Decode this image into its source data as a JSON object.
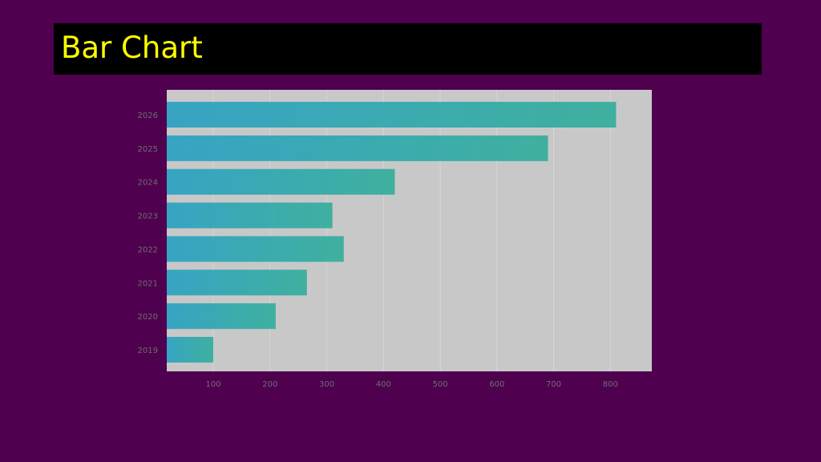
{
  "slide": {
    "title": "Bar Chart"
  },
  "colors": {
    "background": "#4f004f",
    "title_bar": "#000000",
    "title_text": "#ffff00",
    "plot_background": "#c8c8c8",
    "gridline": "#d6d6d6",
    "bar_start": "#37a4c3",
    "bar_end": "#3fb09f",
    "tick_text": "#6e6e6e"
  },
  "chart_data": {
    "type": "bar",
    "orientation": "horizontal",
    "title": "",
    "xlabel": "",
    "ylabel": "",
    "categories": [
      "2019",
      "2020",
      "2021",
      "2022",
      "2023",
      "2024",
      "2025",
      "2026"
    ],
    "values": [
      100,
      210,
      265,
      330,
      310,
      420,
      690,
      810
    ],
    "xlim": [
      18,
      873
    ],
    "xticks": [
      100,
      200,
      300,
      400,
      500,
      600,
      700,
      800
    ],
    "grid": true,
    "legend": "none"
  }
}
